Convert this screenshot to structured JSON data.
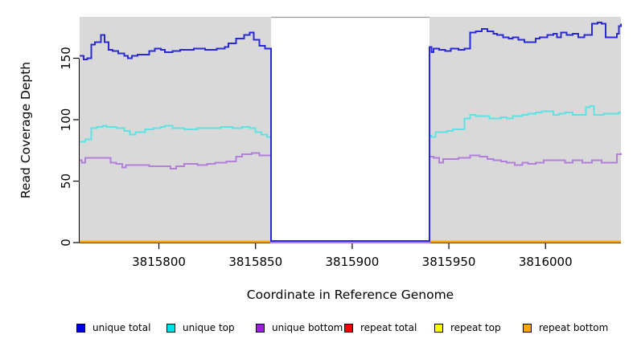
{
  "chart_data": {
    "type": "line",
    "title": "",
    "xlabel": "Coordinate in Reference Genome",
    "ylabel": "Read Coverage Depth",
    "xlim": [
      3815759,
      3816039
    ],
    "ylim": [
      0,
      184
    ],
    "xticks": [
      3815800,
      3815850,
      3815900,
      3815950,
      3816000
    ],
    "yticks": [
      0,
      50,
      100,
      150
    ],
    "grid": false,
    "panel_bg": "#d9d9d9",
    "axis_color": "#000000",
    "step_style": true,
    "gap_region": {
      "start": 3815858,
      "end": 3815940,
      "fill": "#ffffff",
      "border": "#999999"
    },
    "legend_position": "bottom",
    "series": [
      {
        "key": "unique_total",
        "name": "unique total",
        "color": "#2a2ad5",
        "legend_color": "#0000e0",
        "points": [
          [
            3815759,
            152
          ],
          [
            3815761,
            149
          ],
          [
            3815763,
            150
          ],
          [
            3815765,
            161
          ],
          [
            3815767,
            163
          ],
          [
            3815770,
            169
          ],
          [
            3815772,
            163
          ],
          [
            3815774,
            157
          ],
          [
            3815776,
            156
          ],
          [
            3815779,
            154
          ],
          [
            3815782,
            152
          ],
          [
            3815784,
            150
          ],
          [
            3815786,
            152
          ],
          [
            3815789,
            153
          ],
          [
            3815795,
            156
          ],
          [
            3815798,
            158
          ],
          [
            3815801,
            157
          ],
          [
            3815803,
            155
          ],
          [
            3815807,
            156
          ],
          [
            3815811,
            157
          ],
          [
            3815818,
            158
          ],
          [
            3815824,
            157
          ],
          [
            3815830,
            158
          ],
          [
            3815834,
            159
          ],
          [
            3815836,
            162
          ],
          [
            3815840,
            166
          ],
          [
            3815844,
            169
          ],
          [
            3815847,
            171
          ],
          [
            3815849,
            165
          ],
          [
            3815852,
            160
          ],
          [
            3815855,
            158
          ],
          [
            3815858,
            0
          ],
          [
            3815940,
            159
          ],
          [
            3815941,
            155
          ],
          [
            3815942,
            158
          ],
          [
            3815945,
            157
          ],
          [
            3815948,
            156
          ],
          [
            3815951,
            158
          ],
          [
            3815955,
            157
          ],
          [
            3815958,
            158
          ],
          [
            3815961,
            171
          ],
          [
            3815964,
            172
          ],
          [
            3815967,
            174
          ],
          [
            3815970,
            172
          ],
          [
            3815973,
            170
          ],
          [
            3815975,
            169
          ],
          [
            3815978,
            167
          ],
          [
            3815981,
            166
          ],
          [
            3815983,
            167
          ],
          [
            3815986,
            165
          ],
          [
            3815989,
            163
          ],
          [
            3815992,
            163
          ],
          [
            3815995,
            166
          ],
          [
            3815997,
            167
          ],
          [
            3816001,
            169
          ],
          [
            3816004,
            170
          ],
          [
            3816006,
            167
          ],
          [
            3816008,
            171
          ],
          [
            3816011,
            169
          ],
          [
            3816014,
            170
          ],
          [
            3816017,
            167
          ],
          [
            3816020,
            169
          ],
          [
            3816024,
            178
          ],
          [
            3816027,
            179
          ],
          [
            3816029,
            178
          ],
          [
            3816031,
            167
          ],
          [
            3816034,
            167
          ],
          [
            3816037,
            170
          ],
          [
            3816038,
            176
          ],
          [
            3816039,
            178
          ]
        ]
      },
      {
        "key": "unique_top",
        "name": "unique top",
        "color": "#5fe2e2",
        "legend_color": "#00e0e8",
        "points": [
          [
            3815759,
            82
          ],
          [
            3815762,
            84
          ],
          [
            3815765,
            93
          ],
          [
            3815768,
            94
          ],
          [
            3815771,
            95
          ],
          [
            3815773,
            94
          ],
          [
            3815778,
            93
          ],
          [
            3815782,
            91
          ],
          [
            3815785,
            88
          ],
          [
            3815788,
            90
          ],
          [
            3815793,
            92
          ],
          [
            3815797,
            93
          ],
          [
            3815801,
            94
          ],
          [
            3815803,
            95
          ],
          [
            3815807,
            93
          ],
          [
            3815813,
            92
          ],
          [
            3815820,
            93
          ],
          [
            3815827,
            93
          ],
          [
            3815832,
            94
          ],
          [
            3815838,
            93
          ],
          [
            3815843,
            94
          ],
          [
            3815847,
            93
          ],
          [
            3815850,
            90
          ],
          [
            3815853,
            88
          ],
          [
            3815856,
            86
          ],
          [
            3815858,
            0
          ],
          [
            3815940,
            87
          ],
          [
            3815941,
            86
          ],
          [
            3815943,
            90
          ],
          [
            3815945,
            90
          ],
          [
            3815949,
            91
          ],
          [
            3815952,
            92
          ],
          [
            3815955,
            92
          ],
          [
            3815958,
            101
          ],
          [
            3815961,
            104
          ],
          [
            3815964,
            103
          ],
          [
            3815968,
            103
          ],
          [
            3815971,
            101
          ],
          [
            3815974,
            101
          ],
          [
            3815977,
            102
          ],
          [
            3815980,
            101
          ],
          [
            3815983,
            103
          ],
          [
            3815988,
            104
          ],
          [
            3815991,
            105
          ],
          [
            3815995,
            106
          ],
          [
            3815998,
            107
          ],
          [
            3816001,
            107
          ],
          [
            3816004,
            104
          ],
          [
            3816007,
            105
          ],
          [
            3816010,
            106
          ],
          [
            3816014,
            104
          ],
          [
            3816018,
            104
          ],
          [
            3816021,
            110
          ],
          [
            3816023,
            111
          ],
          [
            3816025,
            104
          ],
          [
            3816030,
            105
          ],
          [
            3816035,
            105
          ],
          [
            3816038,
            106
          ]
        ]
      },
      {
        "key": "unique_bottom",
        "name": "unique bottom",
        "color": "#b27fdb",
        "legend_color": "#a020cf",
        "points": [
          [
            3815759,
            67
          ],
          [
            3815760,
            65
          ],
          [
            3815762,
            69
          ],
          [
            3815766,
            69
          ],
          [
            3815772,
            69
          ],
          [
            3815775,
            65
          ],
          [
            3815778,
            64
          ],
          [
            3815781,
            61
          ],
          [
            3815783,
            63
          ],
          [
            3815788,
            63
          ],
          [
            3815795,
            62
          ],
          [
            3815801,
            62
          ],
          [
            3815806,
            60
          ],
          [
            3815809,
            62
          ],
          [
            3815813,
            64
          ],
          [
            3815820,
            63
          ],
          [
            3815825,
            64
          ],
          [
            3815829,
            65
          ],
          [
            3815835,
            66
          ],
          [
            3815840,
            70
          ],
          [
            3815843,
            72
          ],
          [
            3815848,
            73
          ],
          [
            3815852,
            71
          ],
          [
            3815855,
            71
          ],
          [
            3815858,
            0
          ],
          [
            3815940,
            70
          ],
          [
            3815942,
            69
          ],
          [
            3815945,
            65
          ],
          [
            3815947,
            68
          ],
          [
            3815951,
            68
          ],
          [
            3815955,
            69
          ],
          [
            3815958,
            69
          ],
          [
            3815961,
            71
          ],
          [
            3815966,
            70
          ],
          [
            3815970,
            68
          ],
          [
            3815973,
            67
          ],
          [
            3815977,
            66
          ],
          [
            3815980,
            65
          ],
          [
            3815984,
            63
          ],
          [
            3815988,
            65
          ],
          [
            3815991,
            64
          ],
          [
            3815995,
            65
          ],
          [
            3815999,
            67
          ],
          [
            3816005,
            67
          ],
          [
            3816010,
            65
          ],
          [
            3816014,
            67
          ],
          [
            3816019,
            65
          ],
          [
            3816024,
            67
          ],
          [
            3816029,
            65
          ],
          [
            3816034,
            65
          ],
          [
            3816037,
            72
          ],
          [
            3816039,
            73
          ]
        ]
      },
      {
        "key": "repeat_total",
        "name": "repeat total",
        "color": "#ee0000",
        "legend_color": "#ee0000",
        "constant": 0
      },
      {
        "key": "repeat_top",
        "name": "repeat top",
        "color": "#ffff00",
        "legend_color": "#ffff00",
        "constant": 0
      },
      {
        "key": "repeat_bottom",
        "name": "repeat bottom",
        "color": "#ffa500",
        "legend_color": "#ffa500",
        "constant": 0
      }
    ]
  }
}
